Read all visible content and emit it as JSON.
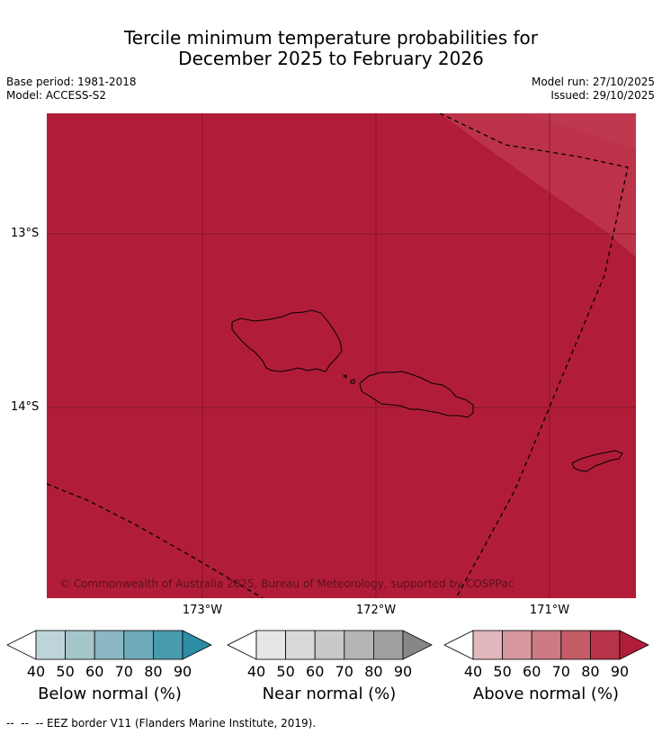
{
  "title_line1": "Tercile minimum temperature probabilities for",
  "title_line2": "December 2025 to February 2026",
  "base_period": "Base period: 1981-2018",
  "model": "Model: ACCESS-S2",
  "model_run": "Model run: 27/10/2025",
  "issued": "Issued: 29/10/2025",
  "map": {
    "lat_labels": [
      "13°S",
      "14°S"
    ],
    "lon_labels": [
      "173°W",
      "172°W",
      "171°W"
    ],
    "copyright": "© Commonwealth of Australia 2025, Bureau of Meteorology, supported by COSPPac",
    "fill_colors": {
      "dominant": "#b11d38",
      "lighter_region": "#bc3249",
      "lightest_region": "#c23d53"
    },
    "gridline_color": "#7a1025",
    "island_names_drawn": false
  },
  "legends": [
    {
      "title": "Below normal (%)",
      "ticks": [
        "40",
        "50",
        "60",
        "70",
        "80",
        "90"
      ],
      "colors": [
        "#ffffff",
        "#bfd4da",
        "#a6c5cb",
        "#8bb6c3",
        "#6eaaba",
        "#4a9aae",
        "#2c8da4"
      ]
    },
    {
      "title": "Near normal (%)",
      "ticks": [
        "40",
        "50",
        "60",
        "70",
        "80",
        "90"
      ],
      "colors": [
        "#ffffff",
        "#e6e6e6",
        "#d9d9d9",
        "#c9c9c9",
        "#b5b5b5",
        "#a0a0a0",
        "#878787"
      ]
    },
    {
      "title": "Above normal (%)",
      "ticks": [
        "40",
        "50",
        "60",
        "70",
        "80",
        "90"
      ],
      "colors": [
        "#ffffff",
        "#e2b6bd",
        "#d6979f",
        "#cc7a84",
        "#c45b69",
        "#b83249",
        "#b11d38"
      ]
    }
  ],
  "footnote": "--  --  -- EEZ border V11 (Flanders Marine Institute, 2019)."
}
